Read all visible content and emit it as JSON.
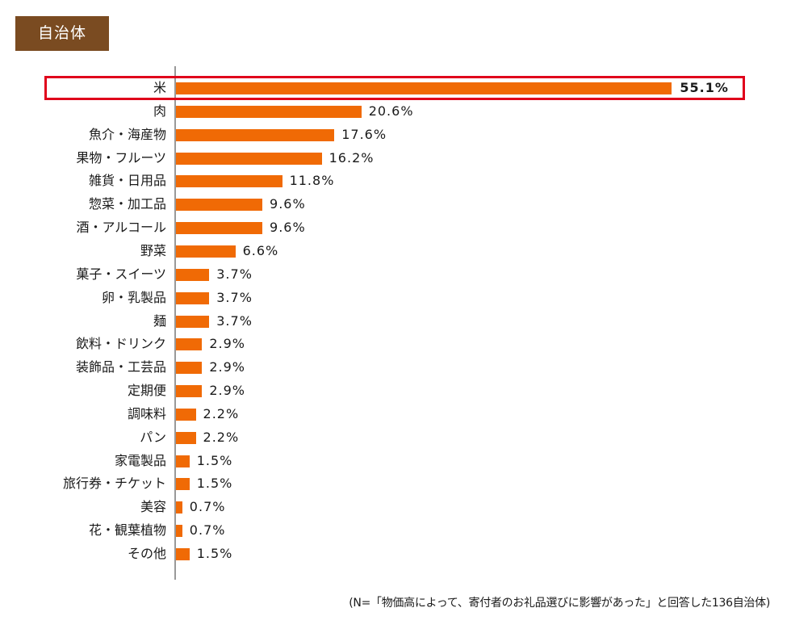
{
  "badge": {
    "label": "自治体",
    "color": "#7a4b21"
  },
  "footnote": "(N=「物価高によって、寄付者のお礼品選びに影響があった」と回答した136自治体)",
  "colors": {
    "bar": "#f06a05",
    "highlight_border": "#e0001b",
    "axis": "#999999"
  },
  "chart_data": {
    "type": "bar",
    "orientation": "horizontal",
    "title": "自治体",
    "xlabel": "",
    "ylabel": "",
    "unit": "%",
    "xlim": [
      0,
      56
    ],
    "grid": false,
    "highlighted_category": "米",
    "categories": [
      "米",
      "肉",
      "魚介・海産物",
      "果物・フルーツ",
      "雑貨・日用品",
      "惣菜・加工品",
      "酒・アルコール",
      "野菜",
      "菓子・スイーツ",
      "卵・乳製品",
      "麺",
      "飲料・ドリンク",
      "装飾品・工芸品",
      "定期便",
      "調味料",
      "パン",
      "家電製品",
      "旅行券・チケット",
      "美容",
      "花・観葉植物",
      "その他"
    ],
    "values": [
      55.1,
      20.6,
      17.6,
      16.2,
      11.8,
      9.6,
      9.6,
      6.6,
      3.7,
      3.7,
      3.7,
      2.9,
      2.9,
      2.9,
      2.2,
      2.2,
      1.5,
      1.5,
      0.7,
      0.7,
      1.5
    ],
    "value_labels": [
      "55.1%",
      "20.6%",
      "17.6%",
      "16.2%",
      "11.8%",
      "9.6%",
      "9.6%",
      "6.6%",
      "3.7%",
      "3.7%",
      "3.7%",
      "2.9%",
      "2.9%",
      "2.9%",
      "2.2%",
      "2.2%",
      "1.5%",
      "1.5%",
      "0.7%",
      "0.7%",
      "1.5%"
    ],
    "note": "(N=「物価高によって、寄付者のお礼品選びに影響があった」と回答した136自治体)"
  }
}
